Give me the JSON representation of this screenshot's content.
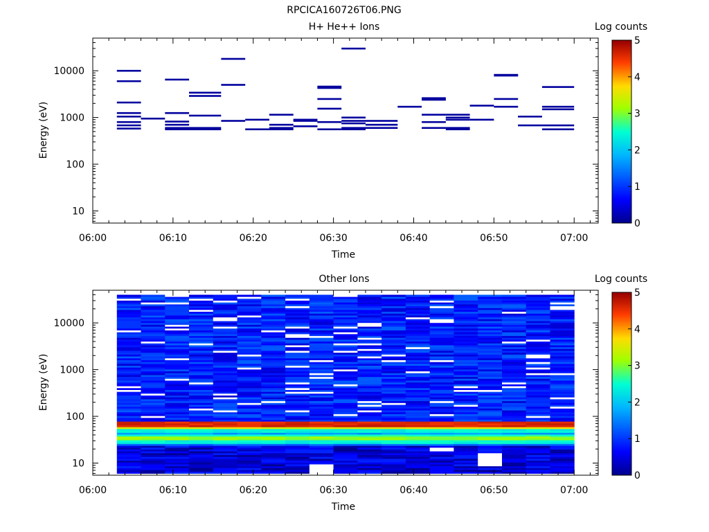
{
  "figure_title": "RPCICA160726T06.PNG",
  "chart_data": [
    {
      "type": "heatmap",
      "title": "H+ He++ Ions",
      "xlabel": "Time",
      "ylabel": "Energy (eV)",
      "xlim": [
        "06:00",
        "07:03"
      ],
      "x_ticks": [
        "06:00",
        "06:10",
        "06:20",
        "06:30",
        "06:40",
        "06:50",
        "07:00"
      ],
      "yscale": "log",
      "ylim": [
        5.5,
        50000
      ],
      "y_ticks": [
        "10",
        "100",
        "1000",
        "10000"
      ],
      "colorbar": {
        "label": "Log counts",
        "range": [
          0,
          5
        ],
        "ticks": [
          "0",
          "1",
          "2",
          "3",
          "4",
          "5"
        ],
        "colormap": "rainbow (dark blue to dark red)"
      },
      "grid": false,
      "columns": [
        {
          "start": "06:03",
          "end": "06:06",
          "energies_ev": [
            10000,
            6000,
            2100,
            1250,
            1050,
            800,
            680,
            580
          ]
        },
        {
          "start": "06:06",
          "end": "06:09",
          "energies_ev": [
            950
          ]
        },
        {
          "start": "06:09",
          "end": "06:12",
          "energies_ev": [
            6500,
            1250,
            820,
            700,
            600,
            560
          ]
        },
        {
          "start": "06:12",
          "end": "06:16",
          "energies_ev": [
            3400,
            2900,
            1100,
            600,
            560
          ]
        },
        {
          "start": "06:16",
          "end": "06:19",
          "energies_ev": [
            18000,
            5000,
            850
          ]
        },
        {
          "start": "06:19",
          "end": "06:22",
          "energies_ev": [
            900,
            560
          ]
        },
        {
          "start": "06:22",
          "end": "06:25",
          "energies_ev": [
            1150,
            700,
            600,
            560
          ]
        },
        {
          "start": "06:25",
          "end": "06:28",
          "energies_ev": [
            900,
            850,
            650
          ]
        },
        {
          "start": "06:28",
          "end": "06:31",
          "energies_ev": [
            4600,
            4300,
            2500,
            1550,
            800,
            560
          ]
        },
        {
          "start": "06:31",
          "end": "06:34",
          "energies_ev": [
            30000,
            1000,
            850,
            750,
            600,
            560
          ]
        },
        {
          "start": "06:34",
          "end": "06:38",
          "energies_ev": [
            850,
            700,
            600
          ]
        },
        {
          "start": "06:38",
          "end": "06:41",
          "energies_ev": [
            1700
          ]
        },
        {
          "start": "06:41",
          "end": "06:44",
          "energies_ev": [
            2600,
            2400,
            1150,
            800,
            600
          ]
        },
        {
          "start": "06:44",
          "end": "06:47",
          "energies_ev": [
            1150,
            1000,
            900,
            600,
            560
          ]
        },
        {
          "start": "06:47",
          "end": "06:50",
          "energies_ev": [
            1800,
            900
          ]
        },
        {
          "start": "06:50",
          "end": "06:53",
          "energies_ev": [
            8200,
            7900,
            2500,
            1700
          ]
        },
        {
          "start": "06:53",
          "end": "06:56",
          "energies_ev": [
            1050,
            680
          ]
        },
        {
          "start": "06:56",
          "end": "07:00",
          "energies_ev": [
            4500,
            1700,
            1500,
            680,
            560
          ]
        }
      ],
      "color_log_counts": 0.1
    },
    {
      "type": "heatmap",
      "title": "Other Ions",
      "xlabel": "Time",
      "ylabel": "Energy (eV)",
      "xlim": [
        "06:00",
        "07:03"
      ],
      "x_ticks": [
        "06:00",
        "06:10",
        "06:20",
        "06:30",
        "06:40",
        "06:50",
        "07:00"
      ],
      "yscale": "log",
      "ylim": [
        5.5,
        50000
      ],
      "y_ticks": [
        "10",
        "100",
        "1000",
        "10000"
      ],
      "colorbar": {
        "label": "Log counts",
        "range": [
          0,
          5
        ],
        "ticks": [
          "0",
          "1",
          "2",
          "3",
          "4",
          "5"
        ],
        "colormap": "rainbow (dark blue to dark red)"
      },
      "grid": false,
      "time_range": [
        "06:03",
        "07:00"
      ],
      "energy_range_ev": [
        6,
        40000
      ],
      "background_log_counts_range": [
        0.4,
        1.3
      ],
      "low_energy_log_counts_range": [
        0.0,
        0.9
      ],
      "bands": [
        {
          "energy_ev": [
            57,
            75
          ],
          "log_counts": 4.6
        },
        {
          "energy_ev": [
            52,
            57
          ],
          "log_counts": 3.6
        },
        {
          "energy_ev": [
            46,
            52
          ],
          "log_counts": 2.4
        },
        {
          "energy_ev": [
            40,
            46
          ],
          "log_counts": 1.7
        },
        {
          "energy_ev": [
            36,
            40
          ],
          "log_counts": 2.5
        },
        {
          "energy_ev": [
            31,
            36
          ],
          "log_counts": 3.1
        },
        {
          "energy_ev": [
            27,
            31
          ],
          "log_counts": 2.4
        },
        {
          "energy_ev": [
            24,
            27
          ],
          "log_counts": 1.4
        }
      ],
      "no_data_cells": [
        {
          "start": "06:28",
          "end": "06:31",
          "energy_ev": [
            6,
            9.5
          ]
        },
        {
          "start": "06:48",
          "end": "06:51",
          "energy_ev": [
            9,
            16
          ]
        },
        {
          "start": "06:41",
          "end": "06:44",
          "energy_ev": [
            18,
            22
          ]
        }
      ]
    }
  ]
}
